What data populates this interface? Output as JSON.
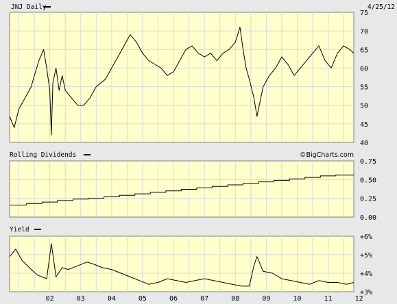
{
  "date": "4/25/12",
  "credit": "©BigCharts.com",
  "colors": {
    "background": "#e8e8e8",
    "plot_fill": "#ffffcc",
    "grid": "#d8d8d8",
    "line": "#000000"
  },
  "chart_data": [
    {
      "type": "line",
      "title": "JNJ Daily",
      "ylim": [
        40,
        75
      ],
      "ytick_labels": [
        "75",
        "70",
        "65",
        "60",
        "55",
        "50",
        "45",
        "40"
      ],
      "grid": true,
      "series": [
        {
          "x": [
            2001.2,
            2001.35,
            2001.5,
            2001.7,
            2001.9,
            2002.0,
            2002.15,
            2002.3,
            2002.4,
            2002.5,
            2002.55,
            2002.6,
            2002.7,
            2002.8,
            2002.9,
            2003.0,
            2003.2,
            2003.4,
            2003.6,
            2003.8,
            2004.0,
            2004.3,
            2004.5,
            2004.7,
            2004.9,
            2005.1,
            2005.3,
            2005.5,
            2005.7,
            2005.9,
            2006.1,
            2006.3,
            2006.5,
            2006.7,
            2006.9,
            2007.1,
            2007.3,
            2007.5,
            2007.7,
            2007.9,
            2008.1,
            2008.3,
            2008.5,
            2008.65,
            2008.75,
            2008.85,
            2008.95,
            2009.1,
            2009.2,
            2009.4,
            2009.6,
            2009.8,
            2010.0,
            2010.2,
            2010.4,
            2010.6,
            2010.8,
            2011.0,
            2011.2,
            2011.4,
            2011.6,
            2011.8,
            2012.0,
            2012.2,
            2012.33
          ],
          "values": [
            47,
            44,
            49,
            52,
            55,
            58,
            62,
            65,
            60,
            54,
            42,
            56,
            60,
            54,
            58,
            54,
            52,
            50,
            50,
            52,
            55,
            57,
            60,
            63,
            66,
            69,
            67,
            64,
            62,
            61,
            60,
            58,
            59,
            62,
            65,
            66,
            64,
            63,
            64,
            62,
            64,
            65,
            67,
            71,
            65,
            60,
            57,
            52,
            47,
            55,
            58,
            60,
            63,
            61,
            58,
            60,
            62,
            64,
            66,
            62,
            60,
            64,
            66,
            65,
            64
          ]
        }
      ]
    },
    {
      "type": "line",
      "title": "Rolling Dividends",
      "ylim": [
        0,
        0.75
      ],
      "ytick_labels": [
        "0.75",
        "0.50",
        "0.25",
        "0.00"
      ],
      "grid": true,
      "series": [
        {
          "x": [
            2001.2,
            2001.75,
            2002.25,
            2002.75,
            2003.25,
            2003.75,
            2004.25,
            2004.75,
            2005.25,
            2005.75,
            2006.25,
            2006.75,
            2007.25,
            2007.75,
            2008.25,
            2008.75,
            2009.25,
            2009.75,
            2010.25,
            2010.75,
            2011.25,
            2011.75,
            2012.33
          ],
          "values": [
            0.16,
            0.18,
            0.2,
            0.22,
            0.24,
            0.25,
            0.27,
            0.29,
            0.31,
            0.33,
            0.35,
            0.37,
            0.39,
            0.41,
            0.43,
            0.45,
            0.47,
            0.49,
            0.51,
            0.53,
            0.55,
            0.56,
            0.56
          ]
        }
      ]
    },
    {
      "type": "line",
      "title": "Yield",
      "ylim": [
        3,
        6
      ],
      "ytick_labels": [
        "+6%",
        "+5%",
        "+4%",
        "+3%"
      ],
      "grid": true,
      "x_tick_labels": [
        "02",
        "03",
        "04",
        "05",
        "06",
        "07",
        "08",
        "09",
        "10",
        "11",
        "12"
      ],
      "series": [
        {
          "x": [
            2001.2,
            2001.4,
            2001.6,
            2001.9,
            2002.1,
            2002.4,
            2002.55,
            2002.7,
            2002.9,
            2003.1,
            2003.4,
            2003.7,
            2003.9,
            2004.2,
            2004.5,
            2004.8,
            2005.1,
            2005.4,
            2005.7,
            2006.0,
            2006.3,
            2006.6,
            2006.9,
            2007.2,
            2007.5,
            2007.8,
            2008.1,
            2008.4,
            2008.7,
            2008.95,
            2009.1,
            2009.2,
            2009.4,
            2009.7,
            2010.0,
            2010.3,
            2010.6,
            2010.9,
            2011.2,
            2011.5,
            2011.8,
            2012.1,
            2012.33
          ],
          "values": [
            4.9,
            5.3,
            4.7,
            4.2,
            3.9,
            3.7,
            5.6,
            3.8,
            4.3,
            4.2,
            4.4,
            4.6,
            4.5,
            4.3,
            4.2,
            4.0,
            3.8,
            3.6,
            3.4,
            3.5,
            3.7,
            3.6,
            3.5,
            3.6,
            3.7,
            3.6,
            3.5,
            3.4,
            3.3,
            3.3,
            4.4,
            4.9,
            4.1,
            4.0,
            3.7,
            3.6,
            3.5,
            3.4,
            3.6,
            3.5,
            3.5,
            3.4,
            3.5
          ]
        }
      ]
    }
  ]
}
